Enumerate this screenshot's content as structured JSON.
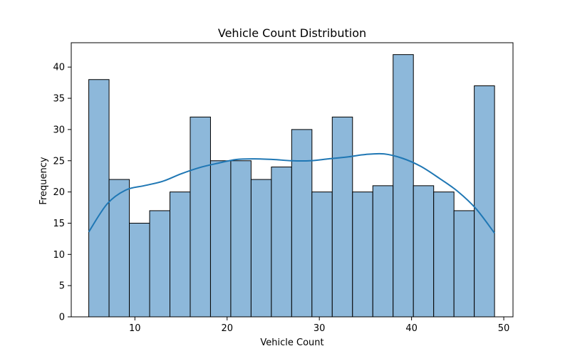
{
  "chart_data": {
    "type": "bar",
    "title": "Vehicle Count Distribution",
    "xlabel": "Vehicle Count",
    "ylabel": "Frequency",
    "xlim": [
      3.1,
      51.0
    ],
    "ylim": [
      0,
      43.9
    ],
    "x_ticks": [
      10,
      20,
      30,
      40,
      50
    ],
    "y_ticks": [
      0,
      5,
      10,
      15,
      20,
      25,
      30,
      35,
      40
    ],
    "bin_start": 5,
    "bin_width": 2.2,
    "values": [
      38,
      22,
      15,
      17,
      20,
      32,
      25,
      25,
      22,
      24,
      30,
      20,
      32,
      20,
      21,
      42,
      21,
      20,
      17,
      37
    ],
    "kde": {
      "x": [
        5,
        7,
        9,
        11,
        13,
        15,
        17,
        19,
        21,
        23,
        25,
        27,
        29,
        31,
        33,
        35,
        37,
        39,
        41,
        43,
        45,
        47,
        49
      ],
      "y": [
        13.6,
        18.1,
        20.3,
        21.0,
        21.7,
        22.9,
        23.9,
        24.6,
        25.2,
        25.3,
        25.2,
        25.0,
        25.0,
        25.3,
        25.6,
        26.0,
        26.1,
        25.4,
        24.1,
        22.2,
        20.1,
        17.3,
        13.4
      ]
    },
    "colors": {
      "bar_fill": "#8db8da",
      "bar_edge": "#000000",
      "kde_line": "#1f77b4"
    },
    "grid": false,
    "legend": "none"
  }
}
